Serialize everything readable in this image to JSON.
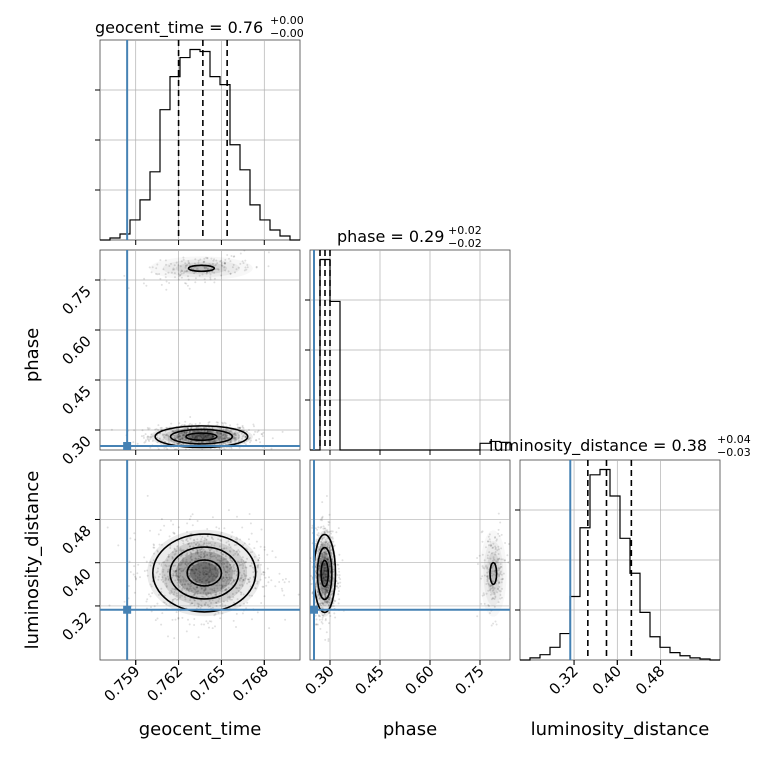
{
  "colors": {
    "truth": "#4682b4",
    "hist": "#000000",
    "grid": "#b0b0b0",
    "points": "#000000"
  },
  "chart_data": [
    {
      "type": "histogram",
      "parameter": "geocent_time",
      "title": {
        "text": "geocent_time = 0.76",
        "sup": "+0.00",
        "sub": "−0.00"
      },
      "xlim": [
        0.7565,
        0.7705
      ],
      "x_ticks": [
        0.759,
        0.762,
        0.765,
        0.768
      ],
      "x_tick_labels": [
        "0.759",
        "0.762",
        "0.765",
        "0.768"
      ],
      "bins": [
        0.7565,
        0.7572,
        0.7579,
        0.7586,
        0.7593,
        0.76,
        0.7607,
        0.7614,
        0.7621,
        0.7628,
        0.7635,
        0.7642,
        0.7649,
        0.7656,
        0.7663,
        0.767,
        0.7677,
        0.7684,
        0.7691,
        0.7698,
        0.7705
      ],
      "counts": [
        0,
        2,
        6,
        20,
        40,
        68,
        130,
        163,
        182,
        190,
        188,
        163,
        155,
        95,
        70,
        35,
        20,
        10,
        4,
        0
      ],
      "quantiles": [
        0.762,
        0.7637,
        0.7654
      ],
      "truth": 0.7584
    },
    {
      "type": "histogram",
      "parameter": "phase",
      "title": {
        "text": "phase = 0.29",
        "sup": "+0.02",
        "sub": "−0.02"
      },
      "xlim": [
        0.24,
        0.84
      ],
      "x_ticks": [
        0.3,
        0.45,
        0.6,
        0.75
      ],
      "x_tick_labels": [
        "0.30",
        "0.45",
        "0.60",
        "0.75"
      ],
      "bins": [
        0.24,
        0.27,
        0.3,
        0.33,
        0.36,
        0.39,
        0.42,
        0.45,
        0.48,
        0.51,
        0.54,
        0.57,
        0.6,
        0.63,
        0.66,
        0.69,
        0.72,
        0.75,
        0.78,
        0.81,
        0.84
      ],
      "counts": [
        0,
        1000,
        780,
        0,
        0,
        0,
        0,
        0,
        0,
        0,
        0,
        0,
        0,
        0,
        0,
        0,
        0,
        35,
        45,
        40
      ],
      "quantiles": [
        0.27,
        0.285,
        0.3
      ],
      "truth": 0.252
    },
    {
      "type": "histogram",
      "parameter": "luminosity_distance",
      "title": {
        "text": "luminosity_distance = 0.38",
        "sup": "+0.04",
        "sub": "−0.03"
      },
      "xlim": [
        0.22,
        0.59
      ],
      "x_ticks": [
        0.32,
        0.4,
        0.48
      ],
      "x_tick_labels": [
        "0.32",
        "0.40",
        "0.48"
      ],
      "bins": [
        0.22,
        0.2385,
        0.257,
        0.2755,
        0.294,
        0.3125,
        0.331,
        0.3495,
        0.368,
        0.3865,
        0.405,
        0.4235,
        0.442,
        0.4605,
        0.479,
        0.4975,
        0.516,
        0.5345,
        0.553,
        0.5715,
        0.59
      ],
      "counts": [
        0,
        2,
        5,
        12,
        25,
        60,
        125,
        175,
        180,
        155,
        115,
        82,
        45,
        22,
        12,
        7,
        4,
        2,
        1,
        0
      ],
      "quantiles": [
        0.3455,
        0.38,
        0.426
      ],
      "truth": 0.313
    },
    {
      "type": "scatter",
      "x_param": "geocent_time",
      "y_param": "phase",
      "xlim": [
        0.7565,
        0.7705
      ],
      "ylim": [
        0.24,
        0.84
      ],
      "y_ticks": [
        0.3,
        0.45,
        0.6,
        0.75
      ],
      "y_tick_labels": [
        "0.30",
        "0.45",
        "0.60",
        "0.75"
      ],
      "truth": [
        0.7584,
        0.252
      ],
      "clusters": [
        {
          "x": 0.7636,
          "y": 0.28,
          "sx": 0.0018,
          "sy": 0.018,
          "n": 900
        },
        {
          "x": 0.7636,
          "y": 0.785,
          "sx": 0.0018,
          "sy": 0.018,
          "n": 200,
          "tilt": 5.5
        }
      ]
    },
    {
      "type": "scatter",
      "x_param": "geocent_time",
      "y_param": "luminosity_distance",
      "xlim": [
        0.7565,
        0.7705
      ],
      "ylim": [
        0.22,
        0.59
      ],
      "y_ticks": [
        0.32,
        0.4,
        0.48
      ],
      "y_tick_labels": [
        "0.32",
        "0.40",
        "0.48"
      ],
      "truth": [
        0.7584,
        0.313
      ],
      "clusters": [
        {
          "x": 0.7638,
          "y": 0.381,
          "sx": 0.002,
          "sy": 0.04,
          "n": 1100
        }
      ]
    },
    {
      "type": "scatter",
      "x_param": "phase",
      "y_param": "luminosity_distance",
      "xlim": [
        0.24,
        0.84
      ],
      "ylim": [
        0.22,
        0.59
      ],
      "truth": [
        0.252,
        0.313
      ],
      "clusters": [
        {
          "x": 0.284,
          "y": 0.38,
          "sx": 0.018,
          "sy": 0.04,
          "n": 900
        },
        {
          "x": 0.79,
          "y": 0.38,
          "sx": 0.02,
          "sy": 0.04,
          "n": 200
        }
      ]
    }
  ],
  "axis_labels": {
    "x_bottom": [
      "geocent_time",
      "phase",
      "luminosity_distance"
    ],
    "y_left": [
      "phase",
      "luminosity_distance"
    ]
  }
}
